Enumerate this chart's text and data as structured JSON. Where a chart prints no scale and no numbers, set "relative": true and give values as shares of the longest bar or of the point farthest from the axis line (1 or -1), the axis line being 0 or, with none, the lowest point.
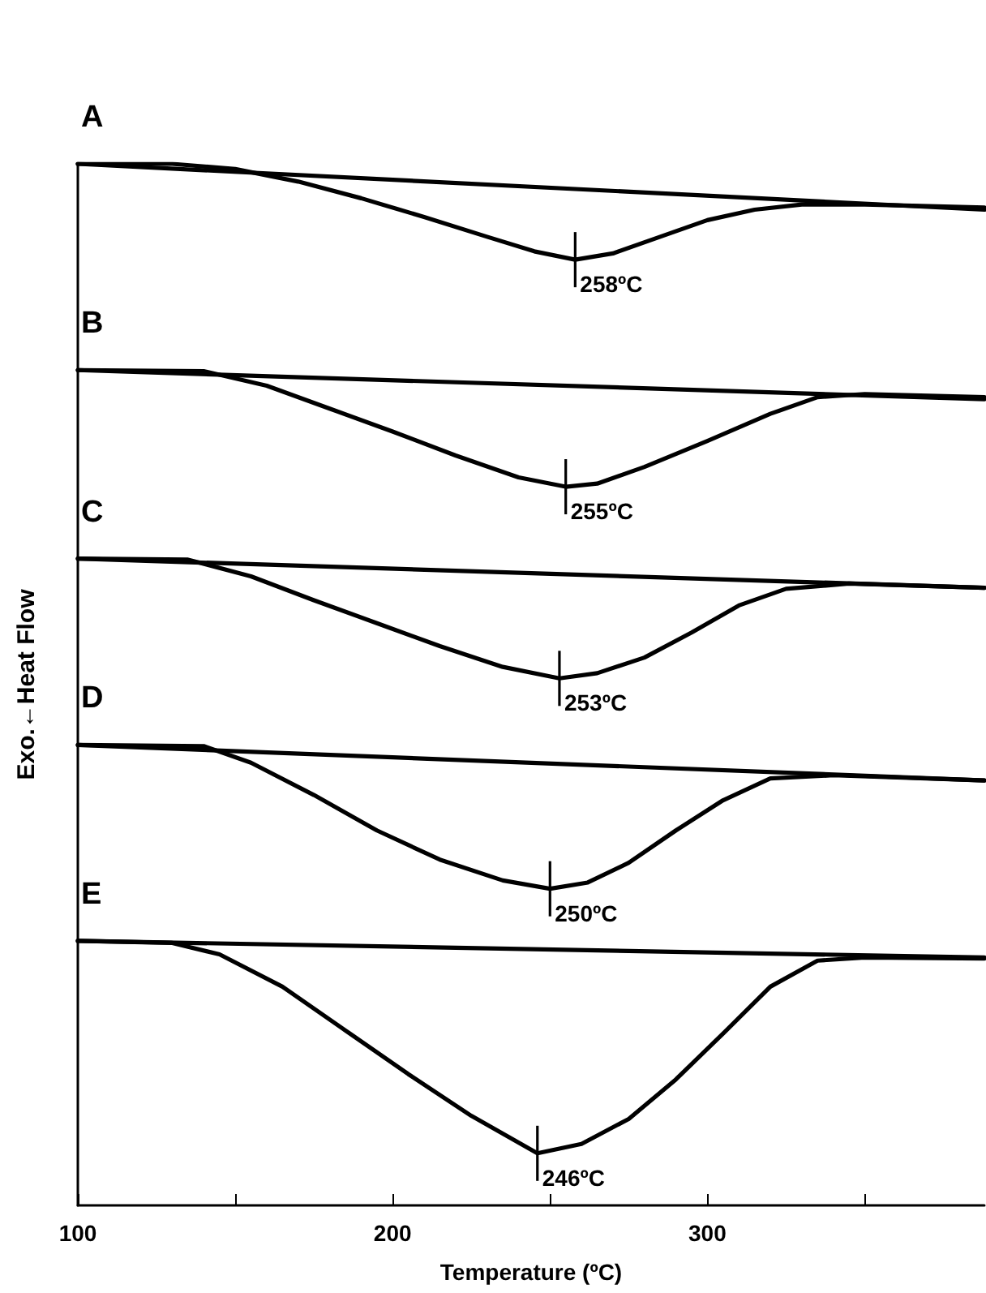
{
  "chart_data": {
    "type": "line",
    "relative": true,
    "xlabel": "Temperature (ºC)",
    "ylabel": "Exo.←Heat Flow",
    "xlim": [
      100,
      388
    ],
    "xticks": [
      100,
      {
        "value": 150,
        "label": null
      },
      200,
      {
        "value": 250,
        "label": null
      },
      300,
      {
        "value": 350,
        "label": null
      }
    ],
    "series": [
      {
        "name": "A",
        "color": "#000000",
        "x": [
          100,
          130,
          150,
          170,
          190,
          210,
          230,
          245,
          258,
          270,
          285,
          300,
          315,
          330,
          350,
          388
        ],
        "values": [
          1.0,
          1.0,
          0.995,
          0.983,
          0.967,
          0.949,
          0.93,
          0.916,
          0.908,
          0.914,
          0.93,
          0.946,
          0.956,
          0.961,
          0.961,
          0.958
        ]
      },
      {
        "color": "#000000",
        "x": [
          100,
          388
        ],
        "values": [
          1.0,
          0.956
        ]
      },
      {
        "name": "B",
        "color": "#000000",
        "x": [
          100,
          140,
          160,
          180,
          200,
          220,
          240,
          255,
          265,
          280,
          300,
          320,
          335,
          350,
          388
        ],
        "values": [
          0.802,
          0.801,
          0.787,
          0.765,
          0.743,
          0.72,
          0.699,
          0.69,
          0.693,
          0.709,
          0.734,
          0.76,
          0.776,
          0.779,
          0.776
        ]
      },
      {
        "color": "#000000",
        "x": [
          100,
          388
        ],
        "values": [
          0.802,
          0.774
        ]
      },
      {
        "name": "C",
        "color": "#000000",
        "x": [
          100,
          135,
          155,
          175,
          195,
          215,
          235,
          253,
          265,
          280,
          295,
          310,
          325,
          345,
          388
        ],
        "values": [
          0.621,
          0.62,
          0.604,
          0.581,
          0.559,
          0.537,
          0.517,
          0.506,
          0.511,
          0.526,
          0.55,
          0.576,
          0.592,
          0.597,
          0.593
        ]
      },
      {
        "color": "#000000",
        "x": [
          100,
          388
        ],
        "values": [
          0.621,
          0.593
        ]
      },
      {
        "name": "D",
        "color": "#000000",
        "x": [
          100,
          140,
          155,
          175,
          195,
          215,
          235,
          250,
          262,
          275,
          290,
          305,
          320,
          340,
          388
        ],
        "values": [
          0.442,
          0.441,
          0.425,
          0.394,
          0.36,
          0.332,
          0.312,
          0.304,
          0.31,
          0.329,
          0.36,
          0.389,
          0.41,
          0.413,
          0.408
        ]
      },
      {
        "color": "#000000",
        "x": [
          100,
          388
        ],
        "values": [
          0.442,
          0.408
        ]
      },
      {
        "name": "E",
        "color": "#000000",
        "x": [
          100,
          130,
          145,
          165,
          185,
          205,
          225,
          246,
          260,
          275,
          290,
          305,
          320,
          335,
          350,
          388
        ],
        "values": [
          0.254,
          0.252,
          0.241,
          0.21,
          0.168,
          0.126,
          0.086,
          0.05,
          0.059,
          0.083,
          0.121,
          0.165,
          0.21,
          0.235,
          0.238,
          0.237
        ]
      },
      {
        "color": "#000000",
        "x": [
          100,
          388
        ],
        "values": [
          0.254,
          0.238
        ]
      }
    ],
    "annotations": [
      {
        "text": "258ºC",
        "x": 258,
        "y": 0.908
      },
      {
        "text": "255ºC",
        "x": 255,
        "y": 0.69
      },
      {
        "text": "253ºC",
        "x": 253,
        "y": 0.506
      },
      {
        "text": "250ºC",
        "x": 250,
        "y": 0.304
      },
      {
        "text": "246ºC",
        "x": 246,
        "y": 0.05
      }
    ]
  }
}
